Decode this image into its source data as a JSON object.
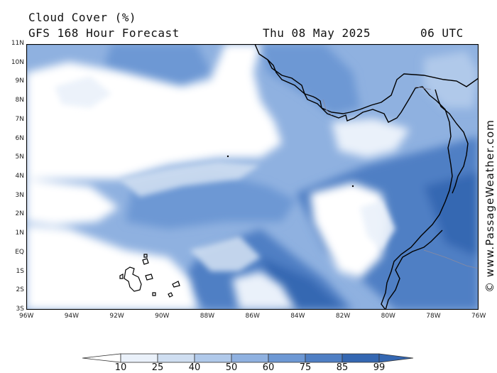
{
  "header": {
    "title": "Cloud Cover (%)",
    "subtitle": "GFS 168 Hour Forecast",
    "date": "Thu 08 May 2025",
    "time": "06 UTC"
  },
  "map": {
    "y_ticks": [
      "11N",
      "10N",
      "9N",
      "8N",
      "7N",
      "6N",
      "5N",
      "4N",
      "3N",
      "2N",
      "1N",
      "EQ",
      "1S",
      "2S",
      "3S"
    ],
    "x_ticks": [
      "96W",
      "94W",
      "92W",
      "90W",
      "88W",
      "86W",
      "84W",
      "82W",
      "80W",
      "78W",
      "76W"
    ],
    "lat_range": [
      -3,
      11
    ],
    "lon_range": [
      -96,
      -76
    ],
    "colors": {
      "lt10": "#ffffff",
      "10_25": "#eaf1fa",
      "25_40": "#cfdef1",
      "40_50": "#b0c9ea",
      "50_60": "#8fb1e0",
      "60_75": "#6d98d4",
      "75_85": "#4f7fc4",
      "85_99": "#3467b2",
      "coast": "#000000"
    }
  },
  "colorbar": {
    "labels": [
      "10",
      "25",
      "40",
      "50",
      "60",
      "75",
      "85",
      "99"
    ]
  },
  "credit": "© www.PassageWeather.com"
}
